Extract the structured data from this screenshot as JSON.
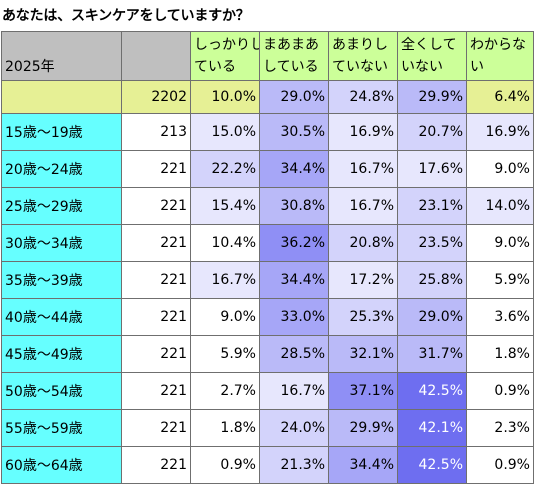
{
  "title": "あなたは、スキンケアをしていますか？",
  "chart_data": {
    "type": "table",
    "year_label": "2025年",
    "columns": [
      "しっかりしている",
      "まあまあしている",
      "あまりしていない",
      "全くしていない",
      "わからない"
    ],
    "column_lines": [
      [
        "しっかりし",
        "ている"
      ],
      [
        "まあまあ",
        "している"
      ],
      [
        "あまりし",
        "ていない"
      ],
      [
        "全くして",
        "いない"
      ],
      [
        "わからな",
        "い"
      ]
    ],
    "total": {
      "label": "",
      "n": "2202",
      "values": [
        "10.0%",
        "29.0%",
        "24.8%",
        "29.9%",
        "6.4%"
      ]
    },
    "rows": [
      {
        "label": "15歳～19歳",
        "n": "213",
        "values": [
          "15.0%",
          "30.5%",
          "16.9%",
          "20.7%",
          "16.9%"
        ]
      },
      {
        "label": "20歳～24歳",
        "n": "221",
        "values": [
          "22.2%",
          "34.4%",
          "16.7%",
          "17.6%",
          "9.0%"
        ]
      },
      {
        "label": "25歳～29歳",
        "n": "221",
        "values": [
          "15.4%",
          "30.8%",
          "16.7%",
          "23.1%",
          "14.0%"
        ]
      },
      {
        "label": "30歳～34歳",
        "n": "221",
        "values": [
          "10.4%",
          "36.2%",
          "20.8%",
          "23.5%",
          "9.0%"
        ]
      },
      {
        "label": "35歳～39歳",
        "n": "221",
        "values": [
          "16.7%",
          "34.4%",
          "17.2%",
          "25.8%",
          "5.9%"
        ]
      },
      {
        "label": "40歳～44歳",
        "n": "221",
        "values": [
          "9.0%",
          "33.0%",
          "25.3%",
          "29.0%",
          "3.6%"
        ]
      },
      {
        "label": "45歳～49歳",
        "n": "221",
        "values": [
          "5.9%",
          "28.5%",
          "32.1%",
          "31.7%",
          "1.8%"
        ]
      },
      {
        "label": "50歳～54歳",
        "n": "221",
        "values": [
          "2.7%",
          "16.7%",
          "37.1%",
          "42.5%",
          "0.9%"
        ]
      },
      {
        "label": "55歳～59歳",
        "n": "221",
        "values": [
          "1.8%",
          "24.0%",
          "29.9%",
          "42.1%",
          "2.3%"
        ]
      },
      {
        "label": "60歳～64歳",
        "n": "221",
        "values": [
          "0.9%",
          "21.3%",
          "34.4%",
          "42.5%",
          "0.9%"
        ]
      }
    ],
    "colors": {
      "header_green": "#ccff99",
      "header_gray": "#bfbfbf",
      "total_yellow": "#e6f095",
      "age_cyan": "#66ffff",
      "white": "#ffffff"
    }
  }
}
